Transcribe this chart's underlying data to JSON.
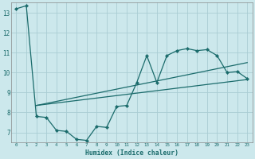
{
  "xlabel": "Humidex (Indice chaleur)",
  "bg_color": "#cce8ec",
  "grid_color": "#aacdd4",
  "line_color": "#1a6b6b",
  "xlim": [
    -0.5,
    23.5
  ],
  "ylim": [
    6.5,
    13.5
  ],
  "xticks": [
    0,
    1,
    2,
    3,
    4,
    5,
    6,
    7,
    8,
    9,
    10,
    11,
    12,
    13,
    14,
    15,
    16,
    17,
    18,
    19,
    20,
    21,
    22,
    23
  ],
  "yticks": [
    7,
    8,
    9,
    10,
    11,
    12,
    13
  ],
  "series_main": {
    "x": [
      0,
      1,
      2,
      3,
      4,
      5,
      6,
      7,
      8,
      9,
      10,
      11,
      12,
      13,
      14,
      15,
      16,
      17,
      18,
      19,
      20,
      21,
      22,
      23
    ],
    "y": [
      13.2,
      13.35,
      7.8,
      7.75,
      7.1,
      7.05,
      6.65,
      6.6,
      7.3,
      7.25,
      8.3,
      8.35,
      9.5,
      10.85,
      9.5,
      10.85,
      11.1,
      11.2,
      11.1,
      11.15,
      10.85,
      10.0,
      10.05,
      9.7
    ]
  },
  "series_reg1": {
    "x": [
      2,
      23
    ],
    "y": [
      8.35,
      9.65
    ]
  },
  "series_reg2": {
    "x": [
      2,
      23
    ],
    "y": [
      8.35,
      10.5
    ]
  }
}
